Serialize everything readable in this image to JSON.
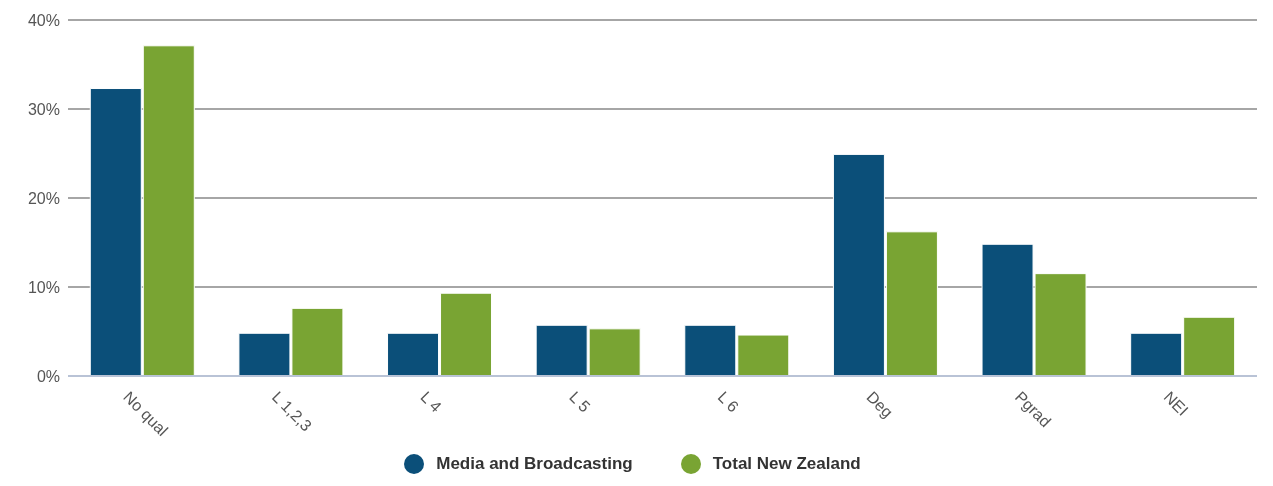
{
  "chart_data": {
    "type": "bar",
    "categories": [
      "No qual",
      "L 1,2,3",
      "L 4",
      "L 5",
      "L 6",
      "Deg",
      "Pgrad",
      "NEI"
    ],
    "series": [
      {
        "name": "Media and Broadcasting",
        "color": "#0b4f79",
        "values": [
          32.3,
          4.8,
          4.8,
          5.7,
          5.7,
          24.9,
          14.8,
          4.8
        ]
      },
      {
        "name": "Total New Zealand",
        "color": "#79a433",
        "values": [
          37.1,
          7.6,
          9.3,
          5.3,
          4.6,
          16.2,
          11.5,
          6.6
        ]
      }
    ],
    "ylim": [
      0,
      40
    ],
    "yticks": [
      {
        "value": 0,
        "label": "0%"
      },
      {
        "value": 10,
        "label": "10%"
      },
      {
        "value": 20,
        "label": "20%"
      },
      {
        "value": 30,
        "label": "30%"
      },
      {
        "value": 40,
        "label": "40%"
      }
    ],
    "grid": "y",
    "legend": "bottom"
  }
}
